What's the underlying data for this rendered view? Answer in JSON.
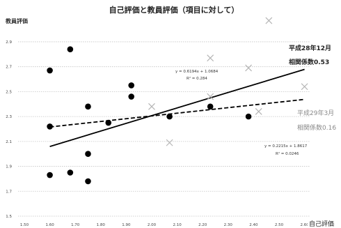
{
  "chart_data": {
    "type": "scatter",
    "title": "自己評価と教員評価（項目に対して）",
    "xlabel": "自己評価",
    "ylabel": "教員評価",
    "xlim": [
      1.5,
      2.6
    ],
    "ylim": [
      1.5,
      3.1
    ],
    "xticks": [
      "1.50",
      "1.60",
      "1.70",
      "1.80",
      "1.90",
      "2.00",
      "2.10",
      "2.20",
      "2.30",
      "2.40",
      "2.50",
      "2.60"
    ],
    "yticks": [
      "1.5",
      "1.7",
      "1.9",
      "2.1",
      "2.3",
      "2.5",
      "2.7",
      "2.9"
    ],
    "grid": true,
    "legend": "none",
    "series": [
      {
        "name": "平成28年12月",
        "correlation_label": "相関係数0.53",
        "marker": "circle",
        "color": "#000000",
        "points": [
          [
            1.6,
            2.67
          ],
          [
            1.68,
            2.84
          ],
          [
            1.6,
            2.22
          ],
          [
            1.6,
            1.83
          ],
          [
            1.68,
            1.85
          ],
          [
            1.75,
            2.38
          ],
          [
            1.75,
            2.0
          ],
          [
            1.75,
            1.78
          ],
          [
            1.83,
            2.25
          ],
          [
            1.92,
            2.55
          ],
          [
            1.92,
            2.46
          ],
          [
            2.07,
            2.3
          ],
          [
            2.23,
            2.38
          ],
          [
            2.38,
            2.3
          ]
        ],
        "trendline": {
          "style": "solid",
          "slope": 0.6194,
          "intercept": 1.0684,
          "x_range": [
            1.6,
            2.6
          ],
          "equation": "y = 0.6194x + 1.0684",
          "r2": "R² = 0.284"
        }
      },
      {
        "name": "平成29年3月",
        "correlation_label": "相関係数0.16",
        "marker": "x",
        "color": "#b5b5b5",
        "points": [
          [
            2.0,
            2.38
          ],
          [
            2.07,
            2.09
          ],
          [
            2.23,
            2.77
          ],
          [
            2.23,
            2.46
          ],
          [
            2.38,
            2.69
          ],
          [
            2.42,
            2.34
          ],
          [
            2.46,
            3.07
          ],
          [
            2.6,
            2.54
          ]
        ],
        "trendline": {
          "style": "dashed",
          "slope": 0.2215,
          "intercept": 1.8617,
          "x_range": [
            1.6,
            2.6
          ],
          "equation": "y = 0.2215x + 1.8617",
          "r2": "R² = 0.0246"
        }
      }
    ]
  }
}
